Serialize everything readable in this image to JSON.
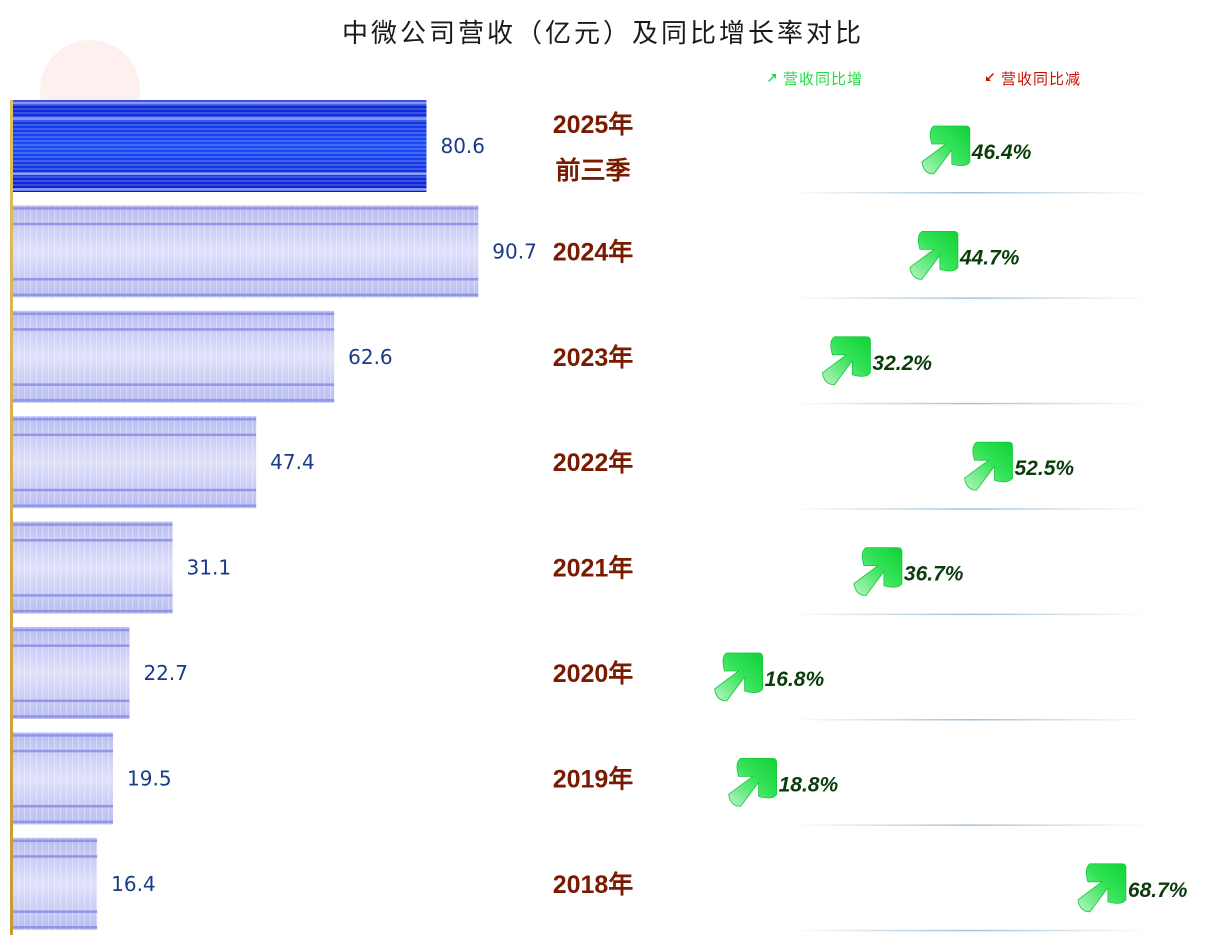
{
  "chart_data": {
    "type": "bar",
    "orientation": "horizontal",
    "title": "中微公司营收（亿元）及同比增长率对比",
    "categories": [
      [
        "2025年",
        "前三季"
      ],
      [
        "2024年"
      ],
      [
        "2023年"
      ],
      [
        "2022年"
      ],
      [
        "2021年"
      ],
      [
        "2020年"
      ],
      [
        "2019年"
      ],
      [
        "2018年"
      ]
    ],
    "series": [
      {
        "values": [
          80.6,
          90.7,
          62.6,
          47.4,
          31.1,
          22.7,
          19.5,
          16.4
        ]
      },
      {
        "values": [
          46.4,
          44.7,
          32.2,
          52.5,
          36.7,
          16.8,
          18.8,
          68.7
        ]
      }
    ],
    "value_labels": [
      "80.6",
      "90.7",
      "62.6",
      "47.4",
      "31.1",
      "22.7",
      "19.5",
      "16.4"
    ],
    "growth_labels": [
      "46.4%",
      "44.7%",
      "32.2%",
      "52.5%",
      "36.7%",
      "16.8%",
      "18.8%",
      "68.7%"
    ],
    "legend": [
      {
        "label": "营收同比增",
        "icon": "arrow-up-right-icon",
        "color": "#22dd44"
      },
      {
        "label": "营收同比减",
        "icon": "arrow-down-left-icon",
        "color": "#cc1100"
      }
    ],
    "colors": {
      "highlight_bar": "#0a2ee0",
      "bar": "#c4c8f6",
      "value_text": "#1a3a8a",
      "year_text": "#7a1a00",
      "growth_text": "#0b3d0b",
      "arrow_up": "#22dd44"
    }
  }
}
